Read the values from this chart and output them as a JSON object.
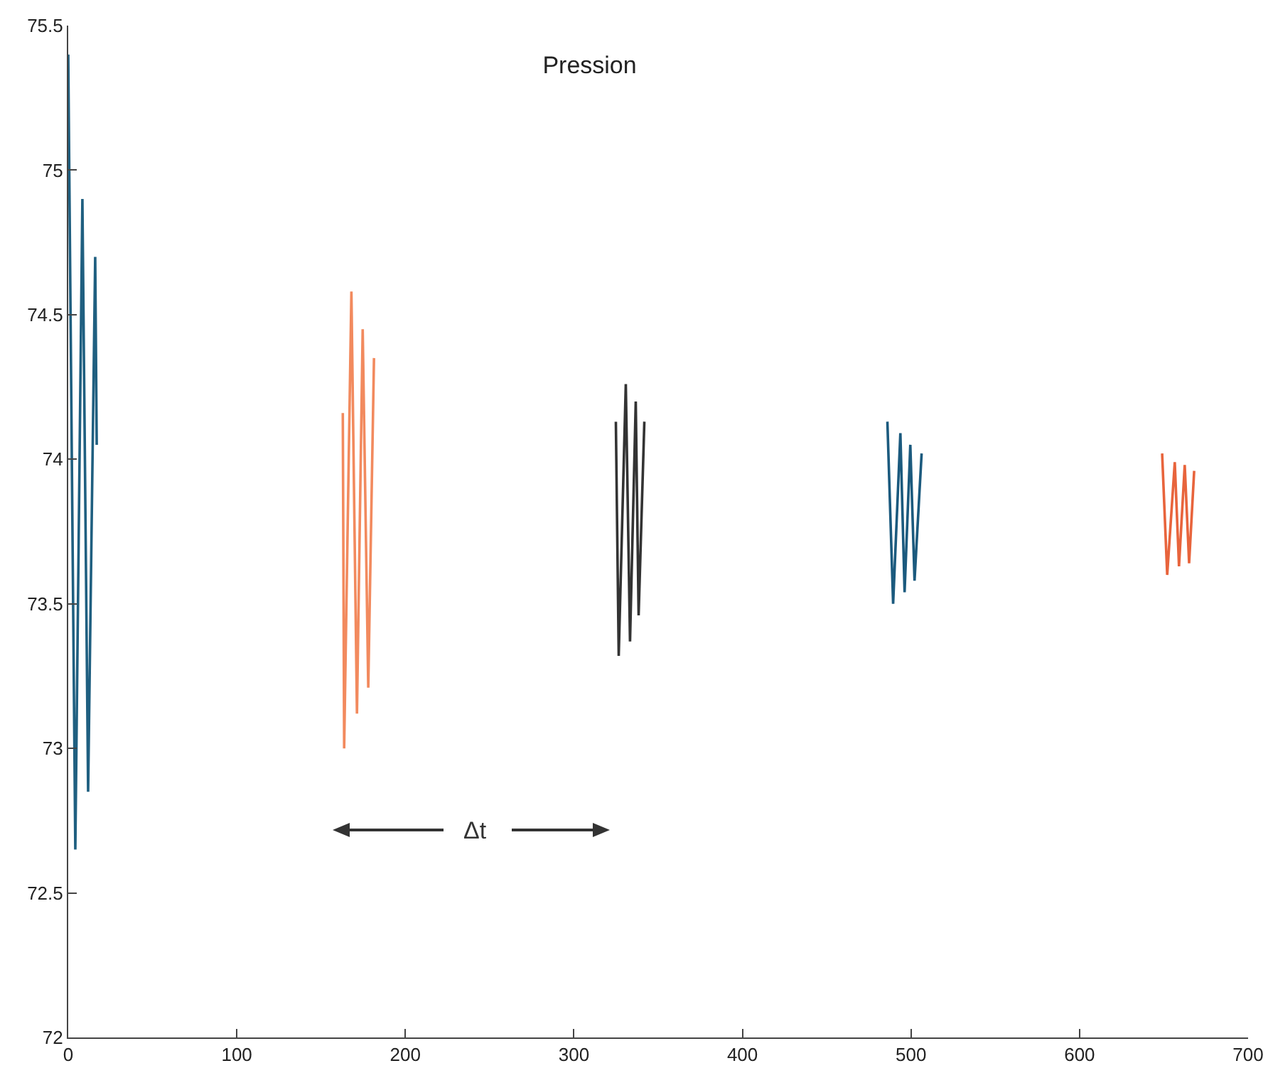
{
  "chart_data": {
    "type": "line",
    "title": "Pression",
    "xlim": [
      0,
      700
    ],
    "xticks": [
      0,
      100,
      200,
      300,
      400,
      500,
      600,
      700
    ],
    "ylim": [
      72,
      75.5
    ],
    "yticks": [
      72,
      72.5,
      73,
      73.5,
      74,
      74.5,
      75,
      75.5
    ],
    "grid": false,
    "marker": "none",
    "line_style": "solid",
    "series": [
      {
        "color": "#1f5f80",
        "x": [
          0,
          4.2,
          8.4,
          11.8,
          16,
          16.9
        ],
        "values": [
          75.4,
          72.65,
          74.9,
          72.85,
          74.7,
          74.05
        ]
      },
      {
        "color": "#f28a5e",
        "x": [
          162.9,
          163.7,
          168,
          171.3,
          174.7,
          178,
          181.4
        ],
        "values": [
          74.16,
          73.0,
          74.58,
          73.12,
          74.45,
          73.21,
          74.35
        ]
      },
      {
        "color": "#333333",
        "x": [
          324.9,
          326.6,
          330.8,
          333.3,
          336.7,
          338.4,
          341.8
        ],
        "values": [
          74.13,
          73.32,
          74.26,
          73.37,
          74.2,
          73.46,
          74.13
        ]
      },
      {
        "color": "#1b5a7e",
        "x": [
          486,
          489.4,
          493.7,
          496.2,
          499.6,
          502.1,
          506.3
        ],
        "values": [
          74.13,
          73.5,
          74.09,
          73.54,
          74.05,
          73.58,
          74.02
        ]
      },
      {
        "color": "#e8643c",
        "x": [
          649,
          652,
          656.5,
          659,
          662.4,
          665,
          668
        ],
        "values": [
          74.02,
          73.6,
          73.99,
          73.63,
          73.98,
          73.64,
          73.96
        ]
      }
    ],
    "annotations": [
      "Δt"
    ]
  }
}
